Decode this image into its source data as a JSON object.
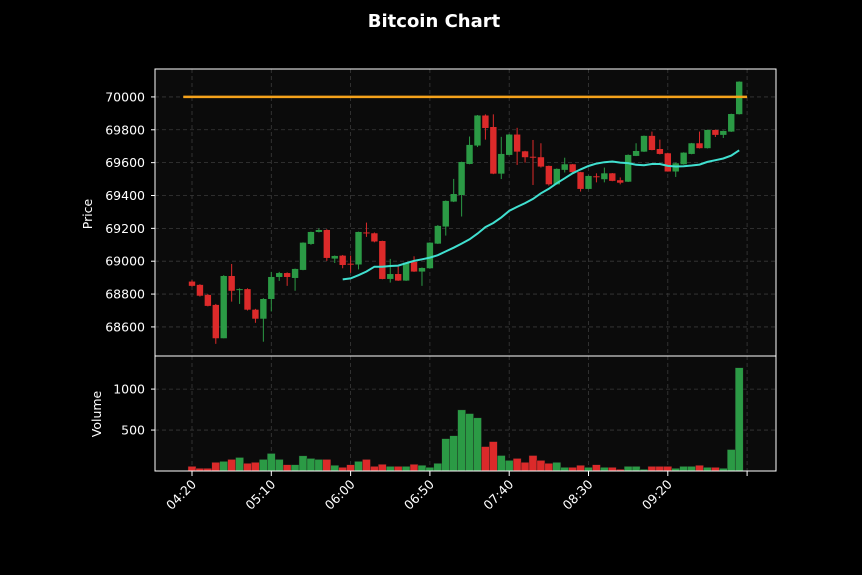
{
  "chart_data": [
    {
      "type": "candlestick",
      "title": "Bitcoin Chart",
      "ylabel": "Price",
      "ylim": [
        68423,
        70170
      ],
      "yticks": [
        68600,
        68800,
        69000,
        69200,
        69400,
        69600,
        69800,
        70000
      ],
      "xtick_labels": [
        "04:20",
        "05:10",
        "06:00",
        "06:50",
        "07:40",
        "08:30",
        "09:20",
        ""
      ],
      "interval_minutes": 5,
      "first_candle": "04:20",
      "grid": true,
      "colors": {
        "up": "#2b9a45",
        "down": "#dc2a2a",
        "ma": "#40e0d0",
        "hline": "#f5a21b",
        "background": "#0b0b0b"
      },
      "hline": 70000,
      "moving_average_period": 20,
      "ohlc": [
        [
          68876,
          68885,
          68845,
          68850
        ],
        [
          68856,
          68860,
          68785,
          68790
        ],
        [
          68795,
          68800,
          68725,
          68728
        ],
        [
          68734,
          68740,
          68497,
          68531
        ],
        [
          68531,
          68915,
          68531,
          68910
        ],
        [
          68910,
          68983,
          68754,
          68820
        ],
        [
          68825,
          68835,
          68740,
          68830
        ],
        [
          68830,
          68835,
          68700,
          68705
        ],
        [
          68705,
          68710,
          68625,
          68650
        ],
        [
          68650,
          68775,
          68510,
          68770
        ],
        [
          68770,
          68935,
          68694,
          68904
        ],
        [
          68904,
          68935,
          68880,
          68928
        ],
        [
          68928,
          68932,
          68850,
          68904
        ],
        [
          68898,
          68955,
          68820,
          68953
        ],
        [
          68947,
          69115,
          68945,
          69113
        ],
        [
          69105,
          69180,
          69100,
          69178
        ],
        [
          69178,
          69200,
          69175,
          69190
        ],
        [
          69190,
          69195,
          69002,
          69020
        ],
        [
          69016,
          69035,
          68989,
          69032
        ],
        [
          69034,
          69038,
          68957,
          68977
        ],
        [
          68985,
          69034,
          68929,
          68980
        ],
        [
          68980,
          69180,
          68950,
          69178
        ],
        [
          69175,
          69235,
          69148,
          69172
        ],
        [
          69170,
          69175,
          69115,
          69120
        ],
        [
          69123,
          69125,
          68890,
          68892
        ],
        [
          68892,
          69014,
          68870,
          68922
        ],
        [
          68922,
          68967,
          68880,
          68882
        ],
        [
          68882,
          68995,
          68880,
          68991
        ],
        [
          68996,
          69030,
          68935,
          68937
        ],
        [
          68937,
          68962,
          68850,
          68959
        ],
        [
          68957,
          69115,
          68955,
          69113
        ],
        [
          69107,
          69220,
          69105,
          69215
        ],
        [
          69211,
          69370,
          69156,
          69367
        ],
        [
          69363,
          69501,
          69360,
          69409
        ],
        [
          69403,
          69606,
          69272,
          69604
        ],
        [
          69592,
          69759,
          69590,
          69708
        ],
        [
          69704,
          69890,
          69695,
          69887
        ],
        [
          69887,
          69894,
          69740,
          69811
        ],
        [
          69817,
          69894,
          69530,
          69533
        ],
        [
          69533,
          69757,
          69500,
          69653
        ],
        [
          69647,
          69775,
          69645,
          69771
        ],
        [
          69771,
          69812,
          69586,
          69667
        ],
        [
          69669,
          69672,
          69600,
          69633
        ],
        [
          69636,
          69738,
          69464,
          69633
        ],
        [
          69633,
          69718,
          69570,
          69576
        ],
        [
          69580,
          69582,
          69460,
          69468
        ],
        [
          69468,
          69565,
          69466,
          69562
        ],
        [
          69556,
          69630,
          69540,
          69590
        ],
        [
          69590,
          69592,
          69540,
          69542
        ],
        [
          69542,
          69544,
          69424,
          69440
        ],
        [
          69440,
          69522,
          69438,
          69519
        ],
        [
          69517,
          69535,
          69480,
          69515
        ],
        [
          69499,
          69570,
          69480,
          69535
        ],
        [
          69535,
          69537,
          69487,
          69489
        ],
        [
          69493,
          69510,
          69468,
          69478
        ],
        [
          69484,
          69650,
          69482,
          69647
        ],
        [
          69641,
          69718,
          69640,
          69671
        ],
        [
          69667,
          69765,
          69665,
          69763
        ],
        [
          69763,
          69789,
          69675,
          69677
        ],
        [
          69683,
          69740,
          69650,
          69653
        ],
        [
          69657,
          69660,
          69545,
          69546
        ],
        [
          69546,
          69600,
          69513,
          69596
        ],
        [
          69590,
          69663,
          69588,
          69661
        ],
        [
          69653,
          69720,
          69651,
          69718
        ],
        [
          69718,
          69789,
          69686,
          69688
        ],
        [
          69688,
          69801,
          69686,
          69799
        ],
        [
          69799,
          69801,
          69756,
          69769
        ],
        [
          69769,
          69795,
          69750,
          69793
        ],
        [
          69789,
          69898,
          69787,
          69896
        ],
        [
          69895,
          70095,
          69893,
          70093
        ]
      ]
    },
    {
      "type": "bar",
      "ylabel": "Volume",
      "ylim": [
        0,
        1404
      ],
      "yticks": [
        500,
        1000
      ],
      "grid": true,
      "values": [
        56,
        32,
        32,
        105,
        117,
        141,
        165,
        93,
        105,
        141,
        214,
        141,
        77,
        77,
        185,
        153,
        141,
        141,
        69,
        44,
        77,
        117,
        141,
        56,
        81,
        56,
        56,
        56,
        81,
        69,
        44,
        93,
        395,
        431,
        746,
        701,
        649,
        298,
        359,
        189,
        129,
        153,
        105,
        189,
        129,
        93,
        105,
        44,
        44,
        69,
        44,
        77,
        44,
        44,
        20,
        56,
        56,
        20,
        56,
        56,
        56,
        32,
        56,
        56,
        69,
        44,
        44,
        32,
        262,
        1261
      ]
    }
  ]
}
